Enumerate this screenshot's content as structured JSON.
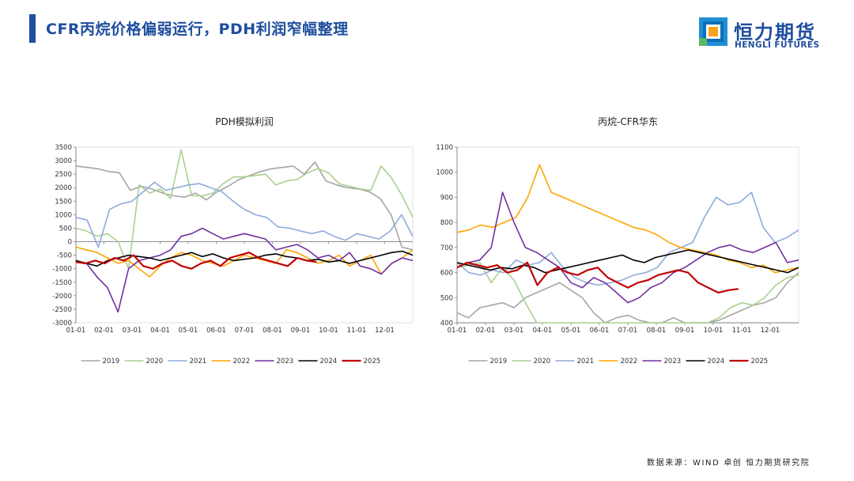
{
  "header": {
    "title": "CFR丙烷价格偏弱运行，PDH利润窄幅整理",
    "logo_cn": "恒力期货",
    "logo_en": "HENGLI FUTURES",
    "logo_icon": "hengli-logo-icon"
  },
  "footer": {
    "source": "数据来源：WIND 卓创 恒力期货研究院"
  },
  "chart_data": [
    {
      "type": "line",
      "title": "PDH模拟利润",
      "xlabel": "",
      "ylabel": "",
      "x_ticks": [
        "01-01",
        "02-01",
        "03-01",
        "04-01",
        "05-01",
        "06-01",
        "07-01",
        "08-01",
        "09-01",
        "10-01",
        "11-01",
        "12-01"
      ],
      "ylim": [
        -3000,
        3500
      ],
      "y_ticks": [
        3500,
        3000,
        2500,
        2000,
        1500,
        1000,
        500,
        0,
        -500,
        -1000,
        -1500,
        -2000,
        -2500,
        -3000
      ],
      "grid": false,
      "legend": "bottom",
      "series": [
        {
          "name": "2019",
          "color": "#a5a5a5",
          "width": 1.6,
          "values": [
            2800,
            2750,
            2700,
            2600,
            2550,
            1900,
            2050,
            1950,
            1800,
            1700,
            1650,
            1800,
            1550,
            1850,
            2050,
            2300,
            2450,
            2600,
            2700,
            2750,
            2800,
            2500,
            2950,
            2250,
            2100,
            2000,
            1950,
            1850,
            1600,
            1000,
            -200,
            -300
          ]
        },
        {
          "name": "2020",
          "color": "#a9d18e",
          "width": 1.6,
          "values": [
            500,
            400,
            200,
            300,
            0,
            -1000,
            2100,
            1800,
            1950,
            1600,
            3400,
            1700,
            1700,
            1800,
            2150,
            2400,
            2400,
            2450,
            2500,
            2100,
            2250,
            2300,
            2550,
            2700,
            2550,
            2150,
            2050,
            1950,
            1900,
            2800,
            2350,
            1700,
            900
          ]
        },
        {
          "name": "2021",
          "color": "#8faadc",
          "width": 1.6,
          "values": [
            900,
            800,
            -200,
            1200,
            1400,
            1500,
            1850,
            2200,
            1900,
            2000,
            2100,
            2150,
            2000,
            1850,
            1500,
            1200,
            1000,
            900,
            550,
            500,
            400,
            300,
            400,
            200,
            50,
            300,
            200,
            100,
            400,
            1000,
            200
          ]
        },
        {
          "name": "2022",
          "color": "#ffa500",
          "width": 1.6,
          "values": [
            -200,
            -300,
            -400,
            -600,
            -800,
            -700,
            -1000,
            -1300,
            -900,
            -600,
            -400,
            -500,
            -700,
            -800,
            -900,
            -700,
            -500,
            -600,
            -700,
            -800,
            -300,
            -400,
            -600,
            -800,
            -700,
            -500,
            -900,
            -700,
            -500,
            -1200,
            -800,
            -600,
            -300
          ]
        },
        {
          "name": "2023",
          "color": "#7030a0",
          "width": 1.6,
          "values": [
            -700,
            -800,
            -1300,
            -1700,
            -2600,
            -1000,
            -700,
            -600,
            -500,
            -300,
            200,
            300,
            500,
            300,
            100,
            200,
            300,
            200,
            100,
            -300,
            -200,
            -100,
            -300,
            -600,
            -500,
            -700,
            -400,
            -900,
            -1000,
            -1200,
            -800,
            -600,
            -700
          ]
        },
        {
          "name": "2024",
          "color": "#000000",
          "width": 1.6,
          "values": [
            -700,
            -800,
            -900,
            -700,
            -600,
            -500,
            -550,
            -600,
            -700,
            -600,
            -500,
            -400,
            -550,
            -450,
            -600,
            -700,
            -650,
            -600,
            -500,
            -450,
            -550,
            -600,
            -700,
            -650,
            -750,
            -700,
            -800,
            -700,
            -600,
            -500,
            -400,
            -350,
            -500
          ]
        },
        {
          "name": "2025",
          "color": "#c00000",
          "width": 2.2,
          "values": [
            -750,
            -800,
            -700,
            -800,
            -600,
            -700,
            -500,
            -900,
            -1000,
            -800,
            -700,
            -900,
            -1000,
            -800,
            -700,
            -900,
            -600,
            -500,
            -400,
            -600,
            -700,
            -800,
            -900,
            -600,
            -700,
            -750
          ]
        }
      ]
    },
    {
      "type": "line",
      "title": "丙烷-CFR华东",
      "xlabel": "",
      "ylabel": "",
      "x_ticks": [
        "01-01",
        "02-01",
        "03-01",
        "04-01",
        "05-01",
        "06-01",
        "07-01",
        "08-01",
        "09-01",
        "10-01",
        "11-01",
        "12-01"
      ],
      "ylim": [
        400,
        1100
      ],
      "y_ticks": [
        1100,
        1000,
        900,
        800,
        700,
        600,
        500,
        400
      ],
      "grid": false,
      "legend": "bottom",
      "series": [
        {
          "name": "2019",
          "color": "#a5a5a5",
          "width": 1.6,
          "values": [
            440,
            420,
            460,
            470,
            480,
            460,
            500,
            520,
            540,
            560,
            530,
            500,
            440,
            400,
            420,
            430,
            410,
            400,
            400,
            420,
            400,
            400,
            400,
            410,
            430,
            450,
            470,
            480,
            500,
            560,
            600
          ]
        },
        {
          "name": "2020",
          "color": "#a9d18e",
          "width": 1.6,
          "values": [
            620,
            630,
            640,
            560,
            620,
            570,
            480,
            400,
            400,
            400,
            400,
            400,
            400,
            400,
            400,
            400,
            400,
            400,
            400,
            400,
            400,
            400,
            400,
            420,
            460,
            480,
            470,
            500,
            550,
            580,
            590
          ]
        },
        {
          "name": "2021",
          "color": "#8faadc",
          "width": 1.6,
          "values": [
            640,
            600,
            590,
            610,
            600,
            650,
            630,
            640,
            680,
            620,
            580,
            560,
            550,
            560,
            570,
            590,
            600,
            620,
            680,
            700,
            720,
            820,
            900,
            870,
            880,
            920,
            780,
            720,
            740,
            770
          ]
        },
        {
          "name": "2022",
          "color": "#ffa500",
          "width": 1.6,
          "values": [
            760,
            770,
            790,
            780,
            800,
            820,
            900,
            1030,
            920,
            900,
            880,
            860,
            840,
            820,
            800,
            780,
            770,
            750,
            720,
            700,
            690,
            680,
            670,
            650,
            640,
            620,
            630,
            600,
            610,
            620
          ]
        },
        {
          "name": "2023",
          "color": "#7030a0",
          "width": 1.6,
          "values": [
            620,
            640,
            650,
            700,
            920,
            800,
            700,
            680,
            650,
            620,
            560,
            540,
            580,
            560,
            520,
            480,
            500,
            540,
            560,
            600,
            620,
            650,
            680,
            700,
            710,
            690,
            680,
            700,
            720,
            640,
            650
          ]
        },
        {
          "name": "2024",
          "color": "#000000",
          "width": 1.6,
          "values": [
            640,
            630,
            620,
            610,
            620,
            615,
            630,
            620,
            600,
            610,
            620,
            630,
            640,
            650,
            660,
            670,
            650,
            640,
            660,
            670,
            680,
            690,
            680,
            670,
            660,
            650,
            640,
            630,
            620,
            610,
            600,
            620
          ]
        },
        {
          "name": "2025",
          "color": "#c00000",
          "width": 2.2,
          "values": [
            620,
            640,
            630,
            620,
            630,
            600,
            610,
            640,
            550,
            600,
            620,
            600,
            590,
            610,
            620,
            580,
            560,
            540,
            560,
            570,
            590,
            600,
            610,
            600,
            560,
            540,
            520,
            530,
            535
          ]
        }
      ]
    }
  ]
}
